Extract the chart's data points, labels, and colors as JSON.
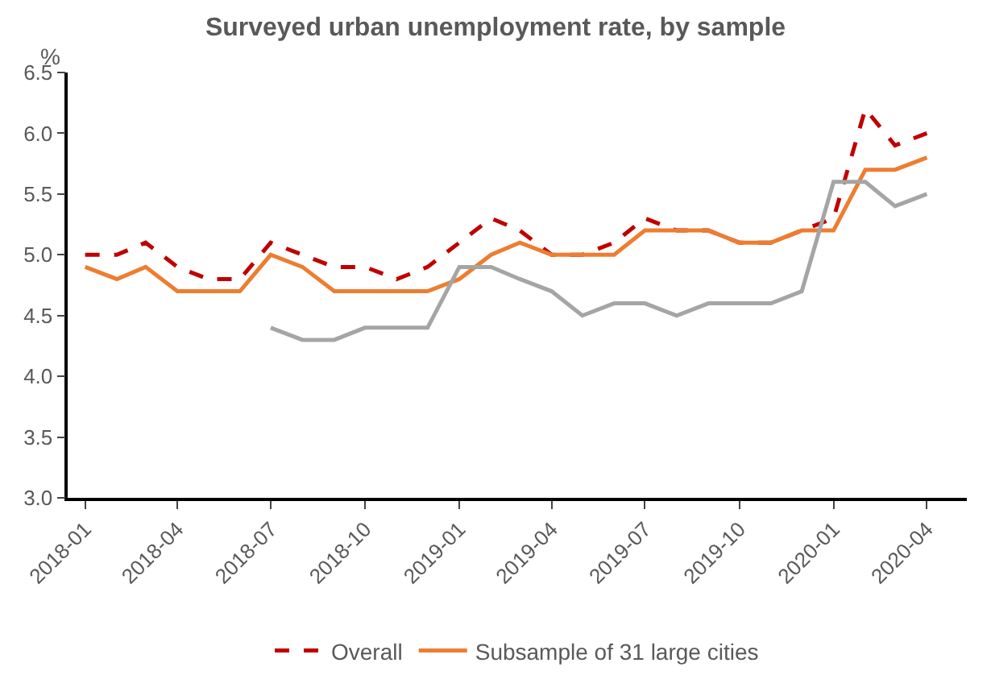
{
  "chart_data": {
    "type": "line",
    "title": "Surveyed urban unemployment rate, by sample",
    "ylabel": "%",
    "x": [
      "2018-01",
      "2018-02",
      "2018-03",
      "2018-04",
      "2018-05",
      "2018-06",
      "2018-07",
      "2018-08",
      "2018-09",
      "2018-10",
      "2018-11",
      "2018-12",
      "2019-01",
      "2019-02",
      "2019-03",
      "2019-04",
      "2019-05",
      "2019-06",
      "2019-07",
      "2019-08",
      "2019-09",
      "2019-10",
      "2019-11",
      "2019-12",
      "2020-01",
      "2020-02",
      "2020-03",
      "2020-04"
    ],
    "series": [
      {
        "name": "Overall",
        "color": "#c00000",
        "line_style": "dashed",
        "values": [
          5.0,
          5.0,
          5.1,
          4.9,
          4.8,
          4.8,
          5.1,
          5.0,
          4.9,
          4.9,
          4.8,
          4.9,
          5.1,
          5.3,
          5.2,
          5.0,
          5.0,
          5.1,
          5.3,
          5.2,
          5.2,
          5.1,
          5.1,
          5.2,
          5.3,
          6.2,
          5.9,
          6.0
        ]
      },
      {
        "name": "Subsample of 31 large cities",
        "color": "#ed7d31",
        "line_style": "solid",
        "values": [
          4.9,
          4.8,
          4.9,
          4.7,
          4.7,
          4.7,
          5.0,
          4.9,
          4.7,
          4.7,
          4.7,
          4.7,
          4.8,
          5.0,
          5.1,
          5.0,
          5.0,
          5.0,
          5.2,
          5.2,
          5.2,
          5.1,
          5.1,
          5.2,
          5.2,
          5.7,
          5.7,
          5.8
        ]
      },
      {
        "color": "#a5a5a5",
        "line_style": "solid",
        "values": [
          null,
          null,
          null,
          null,
          null,
          null,
          4.4,
          4.3,
          4.3,
          4.4,
          4.4,
          4.4,
          4.9,
          4.9,
          4.8,
          4.7,
          4.5,
          4.6,
          4.6,
          4.5,
          4.6,
          4.6,
          4.6,
          4.7,
          5.6,
          5.6,
          5.4,
          5.5
        ]
      }
    ],
    "xlim": [
      "2017-12-15",
      "2020-05-10"
    ],
    "xticks": [
      {
        "value": "2018-01",
        "label": "2018-01"
      },
      {
        "value": "2018-04",
        "label": "2018-04"
      },
      {
        "value": "2018-07",
        "label": "2018-07"
      },
      {
        "value": "2018-10",
        "label": "2018-10"
      },
      {
        "value": "2019-01",
        "label": "2019-01"
      },
      {
        "value": "2019-04",
        "label": "2019-04"
      },
      {
        "value": "2019-07",
        "label": "2019-07"
      },
      {
        "value": "2019-10",
        "label": "2019-10"
      },
      {
        "value": "2020-01",
        "label": "2020-01"
      },
      {
        "value": "2020-04",
        "label": "2020-04"
      }
    ],
    "ylim": [
      3.0,
      6.5
    ],
    "yticks": [
      {
        "value": 3,
        "label": "3.0"
      },
      {
        "value": 3.5,
        "label": "3.5"
      },
      {
        "value": 4,
        "label": "4.0"
      },
      {
        "value": 4.5,
        "label": "4.5"
      },
      {
        "value": 5,
        "label": "5.0"
      },
      {
        "value": 5.5,
        "label": "5.5"
      },
      {
        "value": 6,
        "label": "6.0"
      },
      {
        "value": 6.5,
        "label": "6.5"
      }
    ],
    "legend": "bottom",
    "marker": "none"
  }
}
